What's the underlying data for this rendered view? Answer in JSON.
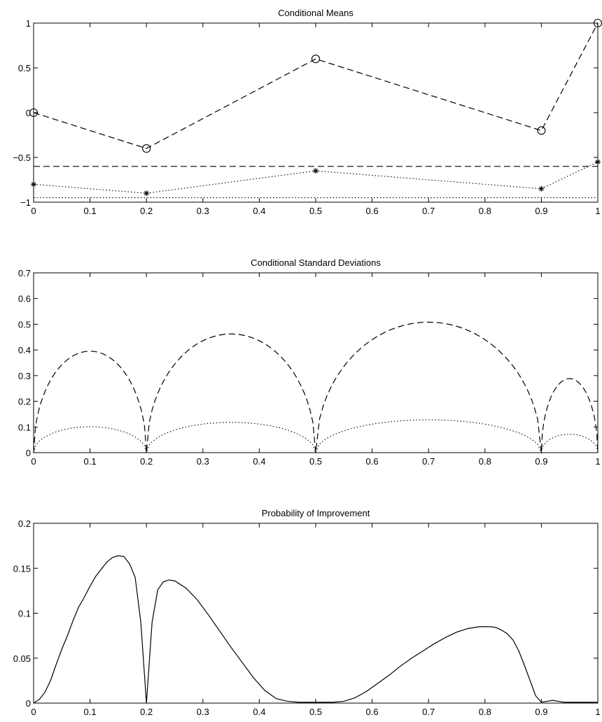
{
  "chart_data": [
    {
      "type": "line",
      "title": "Conditional Means",
      "xlim": [
        0,
        1
      ],
      "ylim": [
        -1,
        1
      ],
      "xticks": [
        0,
        0.1,
        0.2,
        0.3,
        0.4,
        0.5,
        0.6,
        0.7,
        0.8,
        0.9,
        1
      ],
      "xtick_labels": [
        "0",
        "0.1",
        "0.2",
        "0.3",
        "0.4",
        "0.5",
        "0.6",
        "0.7",
        "0.8",
        "0.9",
        "1"
      ],
      "yticks": [
        -1,
        -0.5,
        0,
        0.5,
        1
      ],
      "ytick_labels": [
        "−1",
        "−0.5",
        "0",
        "0.5",
        "1"
      ],
      "series": [
        {
          "style": "dashed",
          "marker": "circle",
          "x": [
            0,
            0.2,
            0.5,
            0.9,
            1
          ],
          "y": [
            0,
            -0.4,
            0.6,
            -0.2,
            1
          ]
        },
        {
          "style": "dashed",
          "marker": "none",
          "x": [
            0,
            1
          ],
          "y": [
            -0.6,
            -0.6
          ]
        },
        {
          "style": "dotted",
          "marker": "star",
          "x": [
            0,
            0.2,
            0.5,
            0.9,
            1
          ],
          "y": [
            -0.8,
            -0.9,
            -0.65,
            -0.85,
            -0.55
          ]
        },
        {
          "style": "dotted",
          "marker": "none",
          "x": [
            0,
            1
          ],
          "y": [
            -0.95,
            -0.95
          ]
        }
      ]
    },
    {
      "type": "line",
      "title": "Conditional Standard Deviations",
      "xlim": [
        0,
        1
      ],
      "ylim": [
        0,
        0.7
      ],
      "xticks": [
        0,
        0.1,
        0.2,
        0.3,
        0.4,
        0.5,
        0.6,
        0.7,
        0.8,
        0.9,
        1
      ],
      "xtick_labels": [
        "0",
        "0.1",
        "0.2",
        "0.3",
        "0.4",
        "0.5",
        "0.6",
        "0.7",
        "0.8",
        "0.9",
        "1"
      ],
      "yticks": [
        0,
        0.1,
        0.2,
        0.3,
        0.4,
        0.5,
        0.6,
        0.7
      ],
      "ytick_labels": [
        "0",
        "0.1",
        "0.2",
        "0.3",
        "0.4",
        "0.5",
        "0.6",
        "0.7"
      ],
      "knots": [
        0,
        0.2,
        0.5,
        0.9,
        1
      ],
      "series": [
        {
          "style": "dashed",
          "arc_peaks": [
            0.395,
            0.462,
            0.508,
            0.288
          ]
        },
        {
          "style": "dotted",
          "arc_peaks": [
            0.101,
            0.118,
            0.128,
            0.072
          ]
        }
      ]
    },
    {
      "type": "line",
      "title": "Probability of Improvement",
      "xlim": [
        0,
        1
      ],
      "ylim": [
        0,
        0.2
      ],
      "xticks": [
        0,
        0.1,
        0.2,
        0.3,
        0.4,
        0.5,
        0.6,
        0.7,
        0.8,
        0.9,
        1
      ],
      "xtick_labels": [
        "0",
        "0.1",
        "0.2",
        "0.3",
        "0.4",
        "0.5",
        "0.6",
        "0.7",
        "0.8",
        "0.9",
        "1"
      ],
      "yticks": [
        0,
        0.05,
        0.1,
        0.15,
        0.2
      ],
      "ytick_labels": [
        "0",
        "0.05",
        "0.1",
        "0.15",
        "0.2"
      ],
      "series": [
        {
          "style": "solid",
          "x": [
            0,
            0.01,
            0.02,
            0.03,
            0.04,
            0.05,
            0.06,
            0.07,
            0.08,
            0.09,
            0.1,
            0.11,
            0.12,
            0.13,
            0.14,
            0.15,
            0.16,
            0.17,
            0.18,
            0.19,
            0.2,
            0.21,
            0.22,
            0.23,
            0.24,
            0.25,
            0.27,
            0.29,
            0.31,
            0.33,
            0.35,
            0.37,
            0.39,
            0.41,
            0.43,
            0.45,
            0.47,
            0.5,
            0.53,
            0.55,
            0.57,
            0.59,
            0.61,
            0.63,
            0.65,
            0.67,
            0.69,
            0.71,
            0.73,
            0.75,
            0.77,
            0.79,
            0.8,
            0.81,
            0.82,
            0.83,
            0.84,
            0.85,
            0.86,
            0.87,
            0.88,
            0.89,
            0.9,
            0.91,
            0.92,
            0.93,
            0.94,
            0.96,
            0.98,
            1
          ],
          "y": [
            0,
            0.004,
            0.012,
            0.025,
            0.043,
            0.06,
            0.075,
            0.092,
            0.107,
            0.118,
            0.13,
            0.141,
            0.149,
            0.157,
            0.162,
            0.164,
            0.163,
            0.155,
            0.14,
            0.09,
            0,
            0.09,
            0.126,
            0.135,
            0.137,
            0.136,
            0.128,
            0.115,
            0.098,
            0.08,
            0.062,
            0.045,
            0.028,
            0.014,
            0.005,
            0.002,
            0.001,
            0.001,
            0.001,
            0.002,
            0.006,
            0.013,
            0.022,
            0.031,
            0.041,
            0.05,
            0.058,
            0.066,
            0.073,
            0.079,
            0.083,
            0.085,
            0.085,
            0.085,
            0.084,
            0.081,
            0.077,
            0.07,
            0.058,
            0.042,
            0.025,
            0.008,
            0.001,
            0.002,
            0.003,
            0.002,
            0.001,
            0.001,
            0.001,
            0.001
          ]
        }
      ]
    }
  ]
}
